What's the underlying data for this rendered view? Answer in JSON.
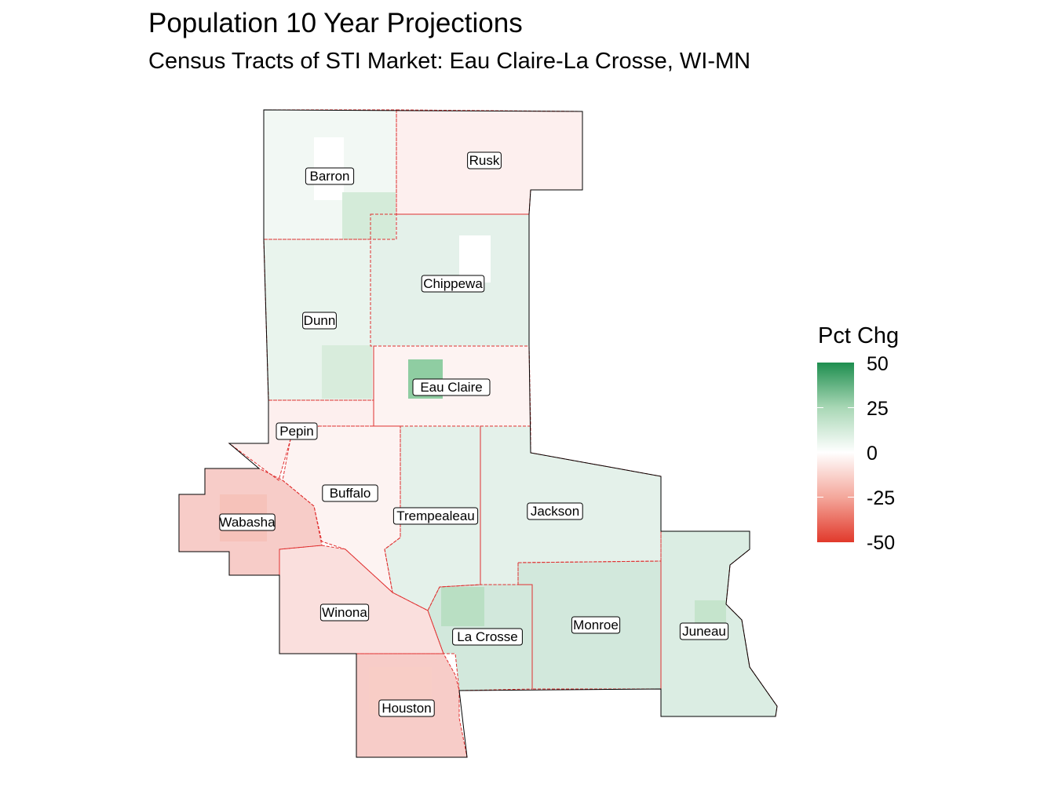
{
  "title": "Population 10 Year Projections",
  "subtitle": "Census Tracts of STI Market: Eau Claire-La Crosse, WI-MN",
  "legend": {
    "title": "Pct Chg",
    "ticks": [
      "50",
      "25",
      "0",
      "-25",
      "-50"
    ],
    "range": [
      -50,
      50
    ],
    "low_color": "#e1392b",
    "mid_color": "#ffffff",
    "high_color": "#1e8e4f"
  },
  "counties": [
    {
      "name": "Barron",
      "value": 3
    },
    {
      "name": "Rusk",
      "value": -4
    },
    {
      "name": "Chippewa",
      "value": 6
    },
    {
      "name": "Dunn",
      "value": 5
    },
    {
      "name": "Eau Claire",
      "value": -3
    },
    {
      "name": "Pepin",
      "value": -4
    },
    {
      "name": "Buffalo",
      "value": -3
    },
    {
      "name": "Trempealeau",
      "value": 6
    },
    {
      "name": "Jackson",
      "value": 6
    },
    {
      "name": "Wabasha",
      "value": -13
    },
    {
      "name": "Winona",
      "value": -8
    },
    {
      "name": "La Crosse",
      "value": 10
    },
    {
      "name": "Monroe",
      "value": 10
    },
    {
      "name": "Juneau",
      "value": 8
    },
    {
      "name": "Houston",
      "value": -13
    }
  ]
}
